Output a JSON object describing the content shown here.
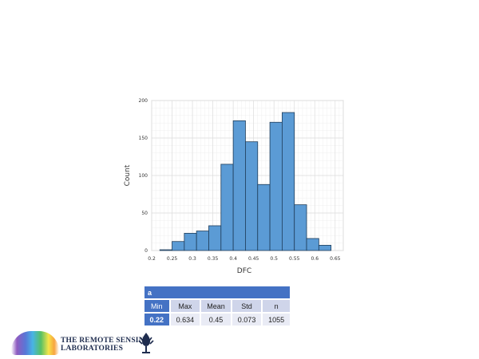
{
  "chart_data": {
    "type": "bar",
    "xlabel": "DFC",
    "ylabel": "Count",
    "xlim": [
      0.2,
      0.67
    ],
    "ylim": [
      0,
      200
    ],
    "xticks": [
      "0.2",
      "0.25",
      "0.3",
      "0.35",
      "0.4",
      "0.45",
      "0.5",
      "0.55",
      "0.6",
      "0.65"
    ],
    "yticks": [
      "0",
      "50",
      "100",
      "150",
      "200"
    ],
    "grid": true,
    "bin_edges": [
      0.22,
      0.25,
      0.28,
      0.31,
      0.34,
      0.37,
      0.4,
      0.43,
      0.46,
      0.49,
      0.52,
      0.55,
      0.58,
      0.61,
      0.64
    ],
    "values": [
      1,
      12,
      23,
      26,
      33,
      115,
      173,
      145,
      88,
      171,
      184,
      61,
      16,
      7
    ],
    "bar_color": "#5b9bd5"
  },
  "stats": {
    "title": "a",
    "headers": [
      "Min",
      "Max",
      "Mean",
      "Std",
      "n"
    ],
    "values": [
      "0.22",
      "0.634",
      "0.45",
      "0.073",
      "1055"
    ]
  },
  "logo": {
    "line1": "THE REMOTE SENSING",
    "line2": "LABORATORIES"
  }
}
